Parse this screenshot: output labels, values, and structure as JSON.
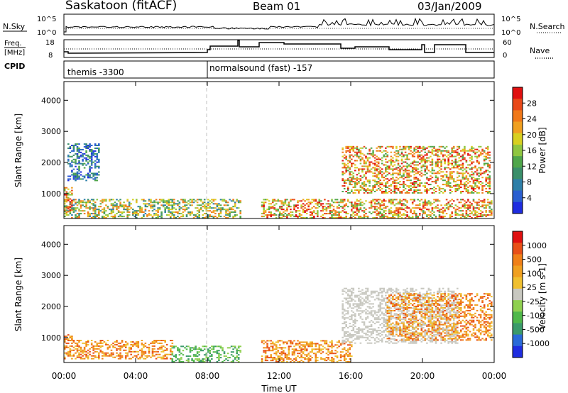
{
  "header": {
    "site": "Saskatoon (fitACF)",
    "beam": "Beam 01",
    "date": "03/Jan/2009"
  },
  "panels": {
    "nsky": {
      "label": "N.Sky",
      "ticks": [
        "10^5",
        "10^0"
      ],
      "right_label": "N.Search",
      "right_ticks": [
        "10^5",
        "10^0"
      ]
    },
    "freq": {
      "label_line1": "Freq.",
      "label_line2": "[MHz]",
      "ticks": [
        "18",
        "8"
      ],
      "right_label": "Nave",
      "right_ticks": [
        "60",
        "0"
      ]
    },
    "cpid": {
      "label": "CPID",
      "segments": [
        "themis -3300",
        "normalsound (fast) -157"
      ]
    }
  },
  "chart_data": [
    {
      "type": "heatmap",
      "title": "",
      "xlabel": "",
      "ylabel": "Slant Range [km]",
      "x_ticks": [
        "00:00",
        "04:00",
        "08:00",
        "12:00",
        "16:00",
        "20:00",
        "00:00"
      ],
      "y_ticks": [
        "1000",
        "2000",
        "3000",
        "4000"
      ],
      "ylim": [
        200,
        4600
      ],
      "colorbar": {
        "label": "Power [dB]",
        "ticks": [
          "28",
          "24",
          "20",
          "16",
          "12",
          "8",
          "4"
        ],
        "colors": [
          "#1f2de0",
          "#2a5fd0",
          "#2e7fa8",
          "#3a8f6a",
          "#4fa64a",
          "#8fc640",
          "#d8d020",
          "#f0a020",
          "#f07818",
          "#e84818",
          "#e01010"
        ]
      },
      "data_gap_hours": [
        9.8,
        11.0
      ],
      "echo_regions": [
        {
          "hours": [
            0.0,
            9.8
          ],
          "range_km": [
            200,
            800
          ],
          "level": "medium"
        },
        {
          "hours": [
            0.0,
            0.5
          ],
          "range_km": [
            400,
            1200
          ],
          "level": "high"
        },
        {
          "hours": [
            0.2,
            2.0
          ],
          "range_km": [
            1400,
            2600
          ],
          "level": "low"
        },
        {
          "hours": [
            11.0,
            23.9
          ],
          "range_km": [
            200,
            800
          ],
          "level": "high"
        },
        {
          "hours": [
            15.5,
            23.8
          ],
          "range_km": [
            1000,
            2500
          ],
          "level": "high"
        }
      ]
    },
    {
      "type": "heatmap",
      "title": "",
      "xlabel": "Time UT",
      "ylabel": "Slant Range [km]",
      "x_ticks": [
        "00:00",
        "04:00",
        "08:00",
        "12:00",
        "16:00",
        "20:00",
        "00:00"
      ],
      "y_ticks": [
        "1000",
        "2000",
        "3000",
        "4000"
      ],
      "ylim": [
        200,
        4600
      ],
      "colorbar": {
        "label": "Velocity [m s-1]",
        "ticks": [
          "1000",
          "500",
          "100",
          "25",
          "-25",
          "-100",
          "-500",
          "-1000"
        ],
        "colors": [
          "#1f2de0",
          "#2a6ad8",
          "#3a9a6a",
          "#4fb84a",
          "#8fd050",
          "#c8c8c0",
          "#f0c030",
          "#f0a020",
          "#f08018",
          "#e85018",
          "#e01010"
        ]
      },
      "data_gap_hours": [
        9.8,
        11.0
      ],
      "echo_regions": [
        {
          "hours": [
            0.0,
            0.5
          ],
          "range_km": [
            300,
            1100
          ],
          "level": "receding"
        },
        {
          "hours": [
            0.5,
            6.0
          ],
          "range_km": [
            300,
            900
          ],
          "level": "receding"
        },
        {
          "hours": [
            6.0,
            9.8
          ],
          "range_km": [
            200,
            700
          ],
          "level": "approaching"
        },
        {
          "hours": [
            11.0,
            16.0
          ],
          "range_km": [
            200,
            900
          ],
          "level": "receding"
        },
        {
          "hours": [
            15.5,
            22.0
          ],
          "range_km": [
            800,
            2600
          ],
          "level": "near-zero"
        },
        {
          "hours": [
            18.0,
            23.9
          ],
          "range_km": [
            900,
            2400
          ],
          "level": "receding"
        }
      ]
    }
  ]
}
